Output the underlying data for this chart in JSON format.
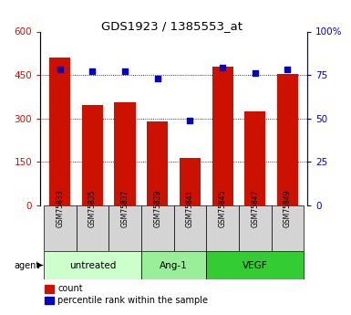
{
  "title": "GDS1923 / 1385553_at",
  "samples": [
    "GSM75833",
    "GSM75835",
    "GSM75837",
    "GSM75839",
    "GSM75841",
    "GSM75845",
    "GSM75847",
    "GSM75849"
  ],
  "counts": [
    510,
    345,
    355,
    290,
    163,
    480,
    325,
    453
  ],
  "percentile_ranks": [
    78,
    77,
    77,
    73,
    49,
    79,
    76,
    78
  ],
  "groups": [
    {
      "label": "untreated",
      "span": [
        0,
        3
      ],
      "color": "#ccffcc"
    },
    {
      "label": "Ang-1",
      "span": [
        3,
        5
      ],
      "color": "#99ee99"
    },
    {
      "label": "VEGF",
      "span": [
        5,
        8
      ],
      "color": "#33cc33"
    }
  ],
  "bar_color": "#cc1100",
  "dot_color": "#0000cc",
  "ylim_left": [
    0,
    600
  ],
  "ylim_right": [
    0,
    100
  ],
  "yticks_left": [
    0,
    150,
    300,
    450,
    600
  ],
  "ytick_labels_left": [
    "0",
    "150",
    "300",
    "450",
    "600"
  ],
  "yticks_right": [
    0,
    25,
    50,
    75,
    100
  ],
  "ytick_labels_right": [
    "0",
    "25",
    "50",
    "75",
    "100%"
  ],
  "grid_lines": [
    150,
    300,
    450
  ],
  "background_color": "#ffffff",
  "plot_bg": "#ffffff",
  "sample_box_color": "#d4d4d4",
  "agent_label": "agent",
  "legend_count_label": "count",
  "legend_pct_label": "percentile rank within the sample"
}
